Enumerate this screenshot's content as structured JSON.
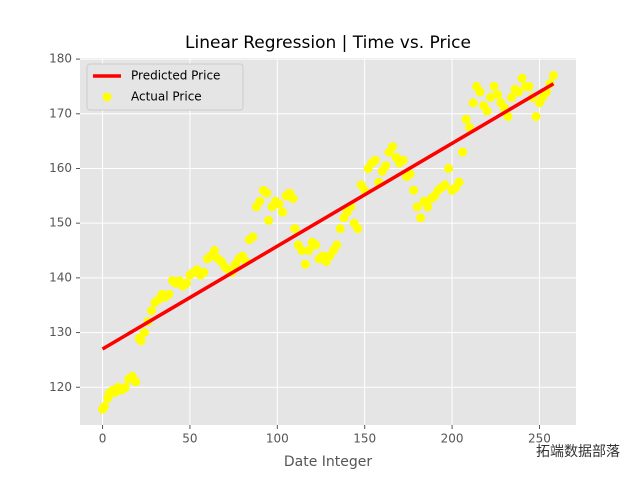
{
  "chart_data": {
    "type": "scatter",
    "title": "Linear Regression | Time vs. Price",
    "x_label": "Date Integer",
    "watermark": "拓端数据部落",
    "xlim": [
      -12.9,
      270.9
    ],
    "ylim": [
      113.1,
      180.2
    ],
    "xticks": [
      0,
      50,
      100,
      150,
      200,
      250
    ],
    "yticks": [
      120,
      130,
      140,
      150,
      160,
      170,
      180
    ],
    "grid": true,
    "legend": "upper left",
    "series": [
      {
        "name": "Predicted Price",
        "type": "line",
        "color": "#ff0000",
        "x": [
          0,
          258
        ],
        "values": [
          127,
          175.5
        ]
      },
      {
        "name": "Actual Price",
        "type": "scatter",
        "color": "#ffff00",
        "x": [
          0,
          1,
          3,
          4,
          6,
          7,
          9,
          11,
          13,
          15,
          17,
          19,
          21,
          22,
          24,
          26,
          28,
          30,
          32,
          34,
          36,
          38,
          40,
          42,
          44,
          46,
          48,
          50,
          52,
          54,
          56,
          58,
          60,
          62,
          64,
          66,
          68,
          70,
          72,
          74,
          76,
          78,
          80,
          82,
          84,
          86,
          88,
          90,
          92,
          94,
          95,
          97,
          99,
          101,
          103,
          105,
          107,
          109,
          110,
          112,
          114,
          116,
          118,
          120,
          122,
          124,
          126,
          128,
          130,
          132,
          134,
          136,
          138,
          140,
          142,
          144,
          146,
          148,
          150,
          152,
          154,
          156,
          158,
          160,
          162,
          164,
          166,
          168,
          170,
          172,
          174,
          176,
          178,
          180,
          182,
          184,
          186,
          188,
          190,
          192,
          194,
          196,
          198,
          200,
          202,
          204,
          206,
          208,
          210,
          212,
          214,
          216,
          218,
          220,
          222,
          224,
          226,
          228,
          230,
          232,
          234,
          236,
          238,
          240,
          242,
          244,
          246,
          248,
          250,
          252,
          254,
          256,
          258
        ],
        "values": [
          116,
          116.5,
          118,
          119,
          119.5,
          119,
          120,
          119.5,
          120,
          121.5,
          122,
          121,
          129,
          128.5,
          130,
          132,
          134,
          135.5,
          136,
          137,
          136.5,
          137,
          139.5,
          139,
          139.5,
          138.5,
          139,
          140.5,
          141,
          141.5,
          140.5,
          141,
          143.5,
          144,
          145,
          143.5,
          143,
          142,
          141.5,
          141,
          142.5,
          143.5,
          144,
          143,
          147,
          147.5,
          153,
          154,
          156,
          155.5,
          150.5,
          153,
          154,
          153.5,
          152,
          155,
          155.5,
          154.5,
          149,
          146,
          145,
          142.5,
          145,
          146.5,
          146,
          143.5,
          144,
          143,
          144,
          145,
          146,
          149,
          151,
          152,
          153,
          150,
          149,
          157,
          156,
          160,
          161,
          161.5,
          157.5,
          159.5,
          160.5,
          163,
          164,
          162,
          161,
          161.5,
          158.5,
          159,
          156,
          153,
          151,
          154,
          153,
          154.5,
          155,
          156,
          156.5,
          157,
          160,
          156,
          156.5,
          157.5,
          163,
          169,
          167.5,
          172,
          175,
          174,
          171.5,
          170.5,
          173,
          175,
          173.5,
          172,
          171,
          169.5,
          173,
          174.5,
          174,
          176.5,
          175,
          175,
          173,
          169.5,
          172,
          173,
          174,
          175.5,
          177
        ]
      }
    ]
  }
}
